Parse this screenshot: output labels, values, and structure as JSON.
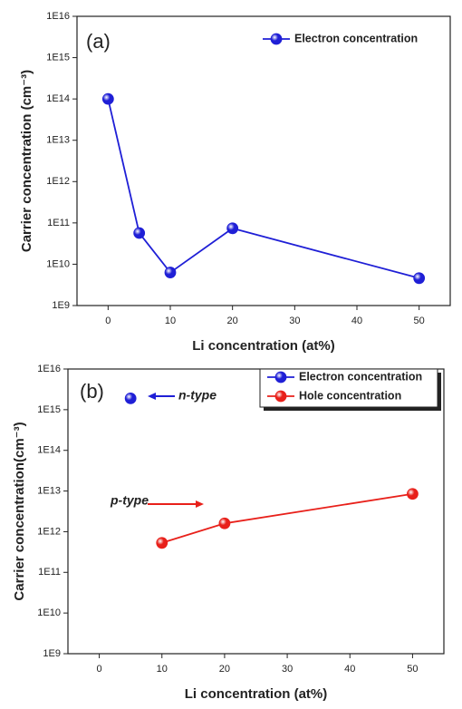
{
  "chart_data": [
    {
      "type": "line",
      "panel_label": "(a)",
      "xlabel": "Li concentration (at%)",
      "ylabel": "Carrier concentration (cm⁻³)",
      "log_y": true,
      "xlim": [
        -5,
        55
      ],
      "xticks": [
        0,
        10,
        20,
        30,
        40,
        50
      ],
      "ylim": [
        1000000000.0,
        1e+16
      ],
      "yticks": [
        {
          "value": 1000000000.0,
          "label": "1E9"
        },
        {
          "value": 10000000000.0,
          "label": "1E10"
        },
        {
          "value": 100000000000.0,
          "label": "1E11"
        },
        {
          "value": 1000000000000.0,
          "label": "1E12"
        },
        {
          "value": 10000000000000.0,
          "label": "1E13"
        },
        {
          "value": 100000000000000.0,
          "label": "1E14"
        },
        {
          "value": 1000000000000000.0,
          "label": "1E15"
        },
        {
          "value": 1e+16,
          "label": "1E16"
        }
      ],
      "legend": "upper right",
      "legend_box": false,
      "series": [
        {
          "name": "Electron concentration",
          "color": "#1f1fd6",
          "x": [
            0,
            5,
            10,
            20,
            50
          ],
          "values": [
            100000000000000.0,
            57000000000.0,
            6300000000.0,
            74000000000.0,
            4600000000.0
          ]
        }
      ]
    },
    {
      "type": "line",
      "panel_label": "(b)",
      "xlabel": "Li concentration (at%)",
      "ylabel": "Carrier concentration(cm⁻³)",
      "log_y": true,
      "xlim": [
        -5,
        55
      ],
      "xticks": [
        0,
        10,
        20,
        30,
        40,
        50
      ],
      "ylim": [
        1000000000.0,
        1e+16
      ],
      "yticks": [
        {
          "value": 1000000000.0,
          "label": "1E9"
        },
        {
          "value": 10000000000.0,
          "label": "1E10"
        },
        {
          "value": 100000000000.0,
          "label": "1E11"
        },
        {
          "value": 1000000000000.0,
          "label": "1E12"
        },
        {
          "value": 10000000000000.0,
          "label": "1E13"
        },
        {
          "value": 100000000000000.0,
          "label": "1E14"
        },
        {
          "value": 1000000000000000.0,
          "label": "1E15"
        },
        {
          "value": 1e+16,
          "label": "1E16"
        }
      ],
      "legend": "upper right",
      "legend_box": true,
      "series": [
        {
          "name": "Electron concentration",
          "color": "#1f1fd6",
          "x": [
            5
          ],
          "values": [
            1900000000000000.0
          ]
        },
        {
          "name": "Hole concentration",
          "color": "#e8201a",
          "x": [
            10,
            20,
            50
          ],
          "values": [
            530000000000.0,
            1600000000000.0,
            8500000000000.0
          ]
        }
      ],
      "annotations": [
        {
          "text": "n-type",
          "color": "#1f1fd6"
        },
        {
          "text": "p-type",
          "color": "#e8201a"
        }
      ]
    }
  ]
}
